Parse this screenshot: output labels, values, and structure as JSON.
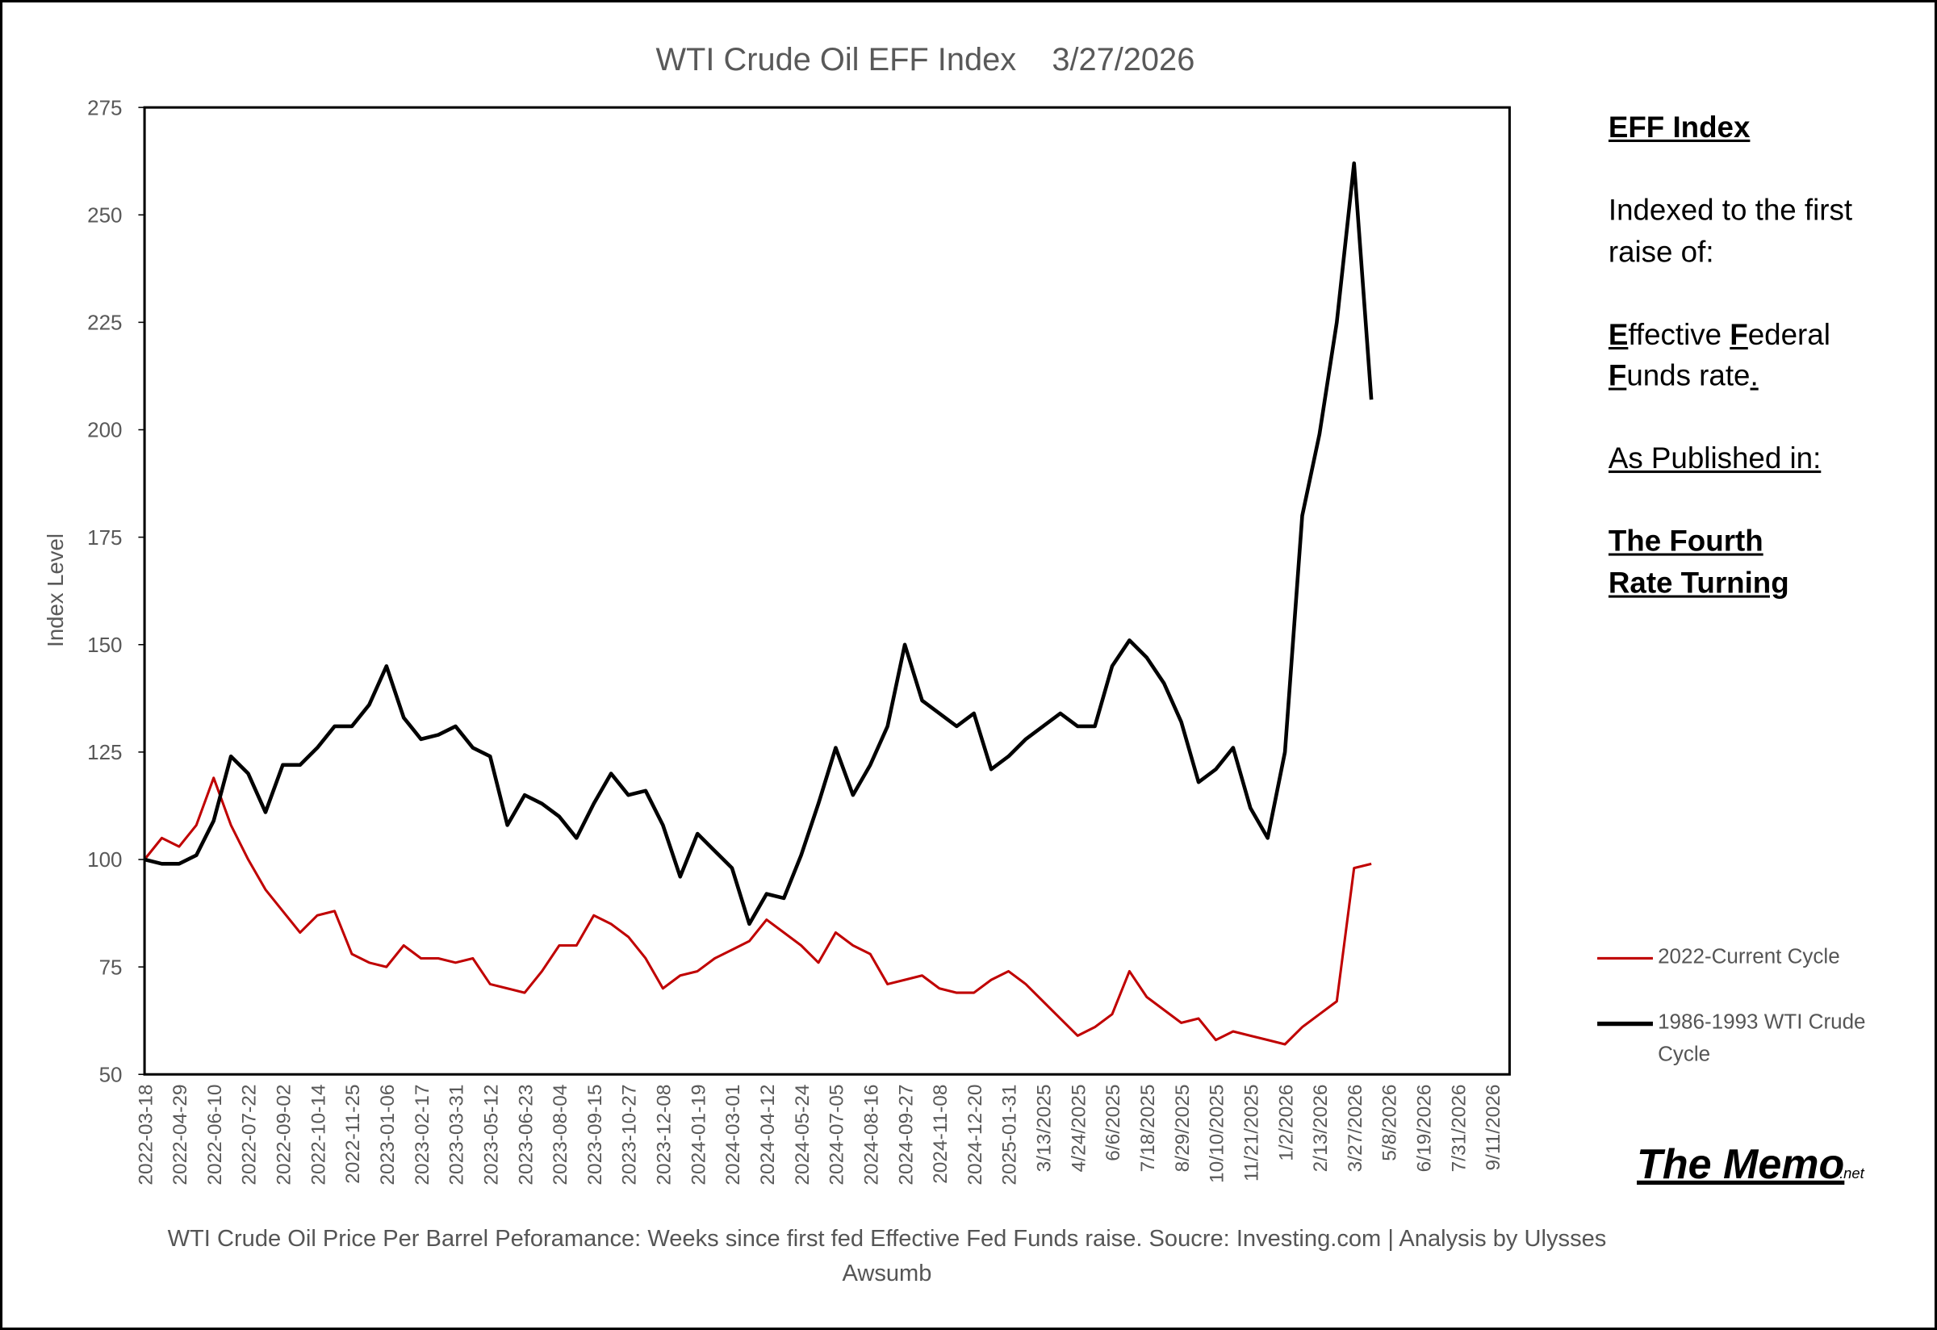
{
  "chart_data": {
    "type": "line",
    "title": "WTI Crude Oil EFF Index    3/27/2026",
    "y_axis_label": "Index Level",
    "caption": "WTI Crude Oil Price Per Barrel Peforamance: Weeks since first fed Effective Fed Funds raise.   Soucre: Investing.com | Analysis by Ulysses Awsumb",
    "categories": [
      "2022-03-18",
      null,
      "2022-04-29",
      null,
      "2022-06-10",
      null,
      "2022-07-22",
      null,
      "2022-09-02",
      null,
      "2022-10-14",
      null,
      "2022-11-25",
      null,
      "2023-01-06",
      null,
      "2023-02-17",
      null,
      "2023-03-31",
      null,
      "2023-05-12",
      null,
      "2023-06-23",
      null,
      "2023-08-04",
      null,
      "2023-09-15",
      null,
      "2023-10-27",
      null,
      "2023-12-08",
      null,
      "2024-01-19",
      null,
      "2024-03-01",
      null,
      "2024-04-12",
      null,
      "2024-05-24",
      null,
      "2024-07-05",
      null,
      "2024-08-16",
      null,
      "2024-09-27",
      null,
      "2024-11-08",
      null,
      "2024-12-20",
      null,
      "2025-01-31",
      null,
      "3/13/2025",
      null,
      "4/24/2025",
      null,
      "6/6/2025",
      null,
      "7/18/2025",
      null,
      "8/29/2025",
      null,
      "10/10/2025",
      null,
      "11/21/2025",
      null,
      "1/2/2026",
      null,
      "2/13/2026",
      null,
      "3/27/2026",
      null,
      "5/8/2026",
      null,
      "6/19/2026",
      null,
      "7/31/2026",
      null,
      "9/11/2026",
      null
    ],
    "series": [
      {
        "name": "2022-Current Cycle",
        "color": "#c00000",
        "values": [
          100,
          105,
          103,
          108,
          119,
          108,
          100,
          93,
          88,
          83,
          87,
          88,
          78,
          76,
          75,
          80,
          77,
          77,
          76,
          77,
          71,
          70,
          69,
          74,
          80,
          80,
          87,
          85,
          82,
          77,
          70,
          73,
          74,
          77,
          79,
          81,
          86,
          83,
          80,
          76,
          83,
          80,
          78,
          71,
          72,
          73,
          70,
          69,
          69,
          72,
          74,
          71,
          67,
          63,
          59,
          61,
          64,
          74,
          68,
          65,
          62,
          63,
          58,
          60,
          59,
          58,
          57,
          61,
          64,
          67,
          98,
          99,
          null,
          null,
          null,
          null,
          null,
          null,
          null,
          null
        ]
      },
      {
        "name": "1986-1993 WTI Crude Cycle",
        "color": "#000000",
        "values": [
          100,
          99,
          99,
          101,
          109,
          124,
          120,
          111,
          122,
          122,
          126,
          131,
          131,
          136,
          145,
          133,
          128,
          129,
          131,
          126,
          124,
          108,
          115,
          113,
          110,
          105,
          113,
          120,
          115,
          116,
          108,
          96,
          106,
          102,
          98,
          85,
          92,
          91,
          101,
          113,
          126,
          115,
          122,
          131,
          150,
          137,
          134,
          131,
          134,
          121,
          124,
          128,
          131,
          134,
          131,
          131,
          145,
          151,
          147,
          141,
          132,
          118,
          121,
          126,
          112,
          105,
          125,
          180,
          199,
          225,
          262,
          207,
          null,
          null,
          null,
          null,
          null,
          null,
          null,
          null
        ]
      }
    ],
    "ylim": [
      50,
      275
    ],
    "yticks": [
      50,
      75,
      100,
      125,
      150,
      175,
      200,
      225,
      250,
      275
    ],
    "grid": false,
    "legend": "right"
  },
  "sidebar": {
    "heading": "EFF Index",
    "line1": "Indexed to the first raise of:",
    "line2": [
      "E",
      "ffective ",
      "F",
      "ederal ",
      "F",
      "unds rate",
      "."
    ],
    "line3": "As Published in:",
    "line4": "The Fourth Rate Turning"
  },
  "logo": {
    "name": "The Memo",
    "suffix": ".net"
  }
}
